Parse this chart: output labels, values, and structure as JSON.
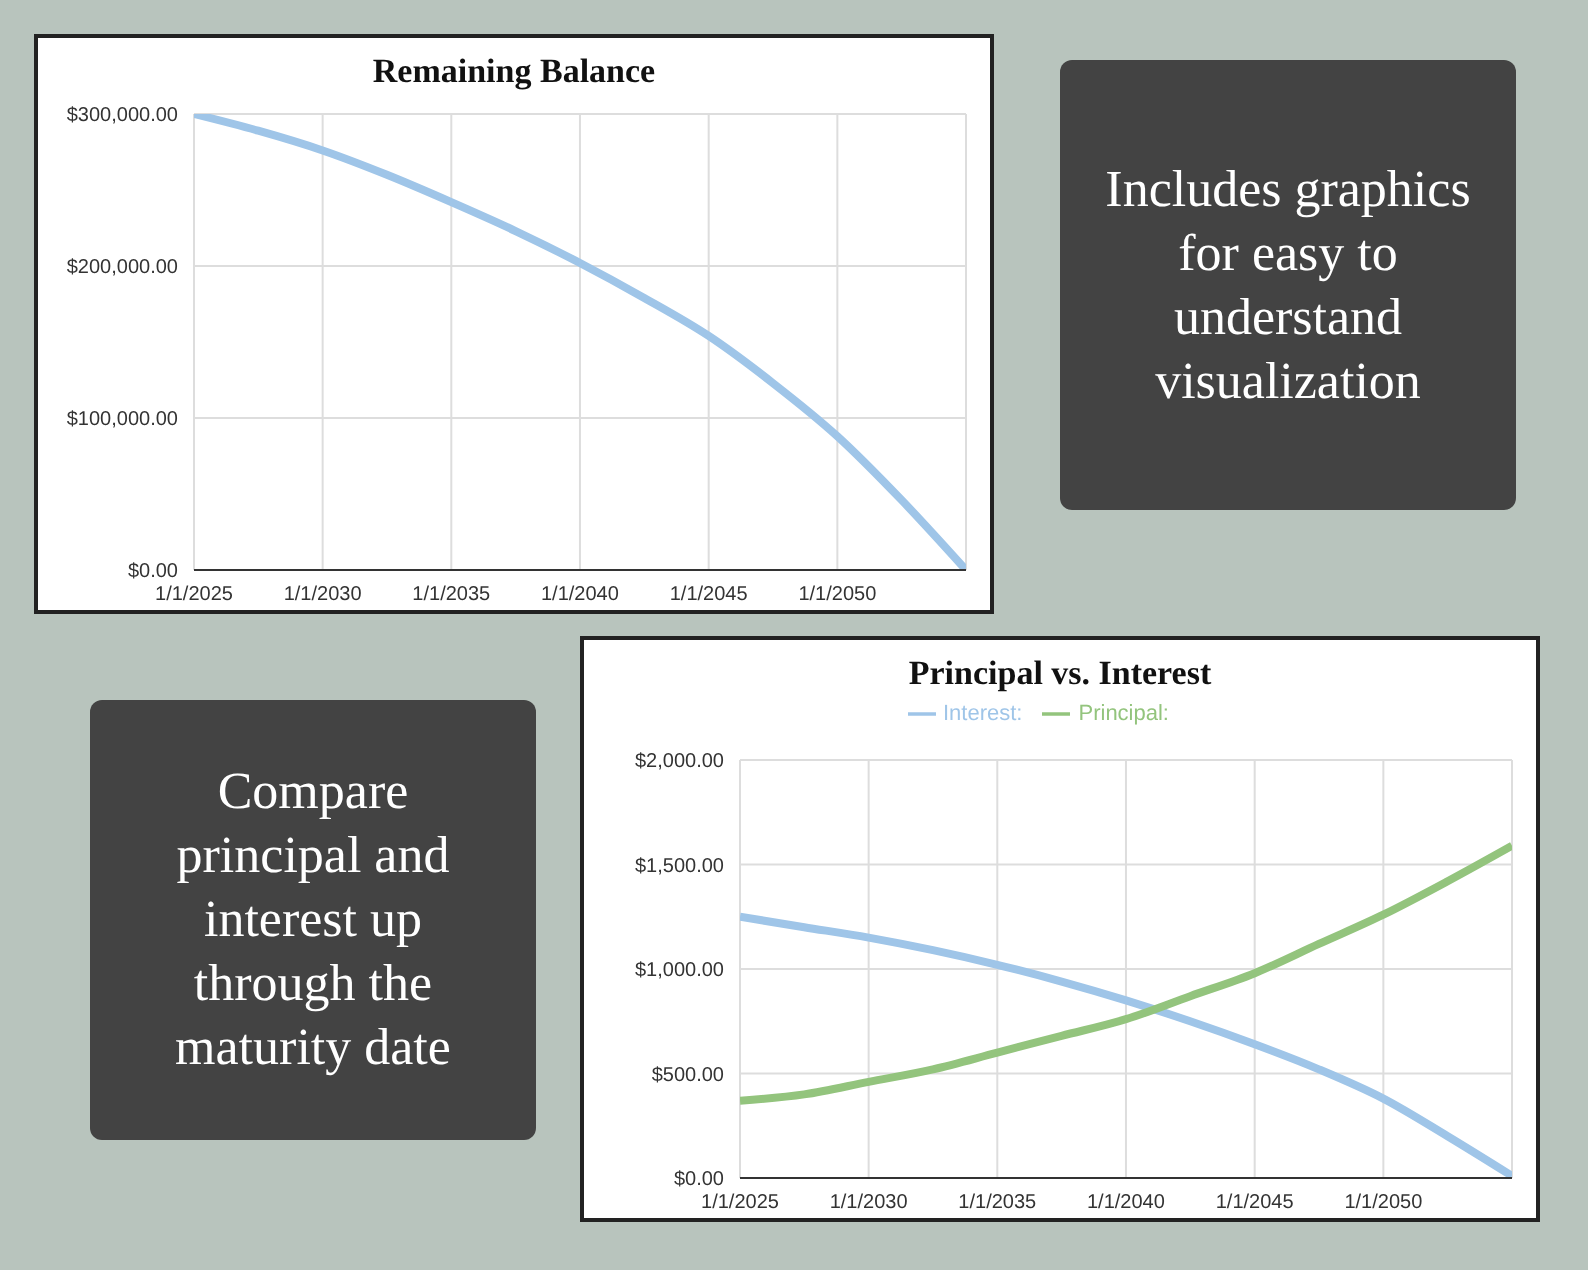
{
  "chart_data": [
    {
      "type": "line",
      "title": "Remaining Balance",
      "x": [
        "2025-01-01",
        "2027-07-01",
        "2030-01-01",
        "2032-07-01",
        "2035-01-01",
        "2037-07-01",
        "2040-01-01",
        "2042-07-01",
        "2045-01-01",
        "2047-07-01",
        "2050-01-01",
        "2052-07-01",
        "2055-01-01"
      ],
      "xlim": [
        "2025-01-01",
        "2055-01-01"
      ],
      "xticks": [
        {
          "value": "2025-01-01",
          "label": "1/1/2025"
        },
        {
          "value": "2030-01-01",
          "label": "1/1/2030"
        },
        {
          "value": "2035-01-01",
          "label": "1/1/2035"
        },
        {
          "value": "2040-01-01",
          "label": "1/1/2040"
        },
        {
          "value": "2045-01-01",
          "label": "1/1/2045"
        },
        {
          "value": "2050-01-01",
          "label": "1/1/2050"
        }
      ],
      "ylim": [
        0,
        300000
      ],
      "yticks": [
        {
          "value": 0,
          "label": "$0.00"
        },
        {
          "value": 100000,
          "label": "$100,000.00"
        },
        {
          "value": 200000,
          "label": "$200,000.00"
        },
        {
          "value": 300000,
          "label": "$300,000.00"
        }
      ],
      "grid": true,
      "series": [
        {
          "color": "#9fc5e8",
          "values": [
            300000,
            289000,
            276000,
            260000,
            242000,
            223000,
            202000,
            179000,
            154000,
            123000,
            88000,
            46000,
            0
          ]
        }
      ]
    },
    {
      "type": "other",
      "title": "Includes graphics for easy to understand visualization"
    },
    {
      "type": "other",
      "title": "Compare principal and interest up through the maturity date"
    },
    {
      "type": "line",
      "title": "Principal vs. Interest",
      "x": [
        "2025-01-01",
        "2027-07-01",
        "2030-01-01",
        "2032-07-01",
        "2035-01-01",
        "2037-07-01",
        "2040-01-01",
        "2042-07-01",
        "2045-01-01",
        "2047-07-01",
        "2050-01-01",
        "2052-07-01",
        "2055-01-01"
      ],
      "xlim": [
        "2025-01-01",
        "2055-01-01"
      ],
      "xticks": [
        {
          "value": "2025-01-01",
          "label": "1/1/2025"
        },
        {
          "value": "2030-01-01",
          "label": "1/1/2030"
        },
        {
          "value": "2035-01-01",
          "label": "1/1/2035"
        },
        {
          "value": "2040-01-01",
          "label": "1/1/2040"
        },
        {
          "value": "2045-01-01",
          "label": "1/1/2045"
        },
        {
          "value": "2050-01-01",
          "label": "1/1/2050"
        }
      ],
      "ylim": [
        0,
        2000
      ],
      "yticks": [
        {
          "value": 0,
          "label": "$0.00"
        },
        {
          "value": 500,
          "label": "$500.00"
        },
        {
          "value": 1000,
          "label": "$1,000.00"
        },
        {
          "value": 1500,
          "label": "$1,500.00"
        },
        {
          "value": 2000,
          "label": "$2,000.00"
        }
      ],
      "grid": true,
      "legend": "top",
      "series": [
        {
          "name": "Interest:",
          "color": "#9fc5e8",
          "values": [
            1250,
            1200,
            1150,
            1090,
            1020,
            940,
            850,
            750,
            640,
            520,
            380,
            200,
            10
          ]
        },
        {
          "name": "Principal:",
          "color": "#93c47d",
          "values": [
            370,
            400,
            460,
            520,
            600,
            680,
            760,
            870,
            980,
            1120,
            1260,
            1420,
            1590
          ]
        }
      ]
    }
  ]
}
